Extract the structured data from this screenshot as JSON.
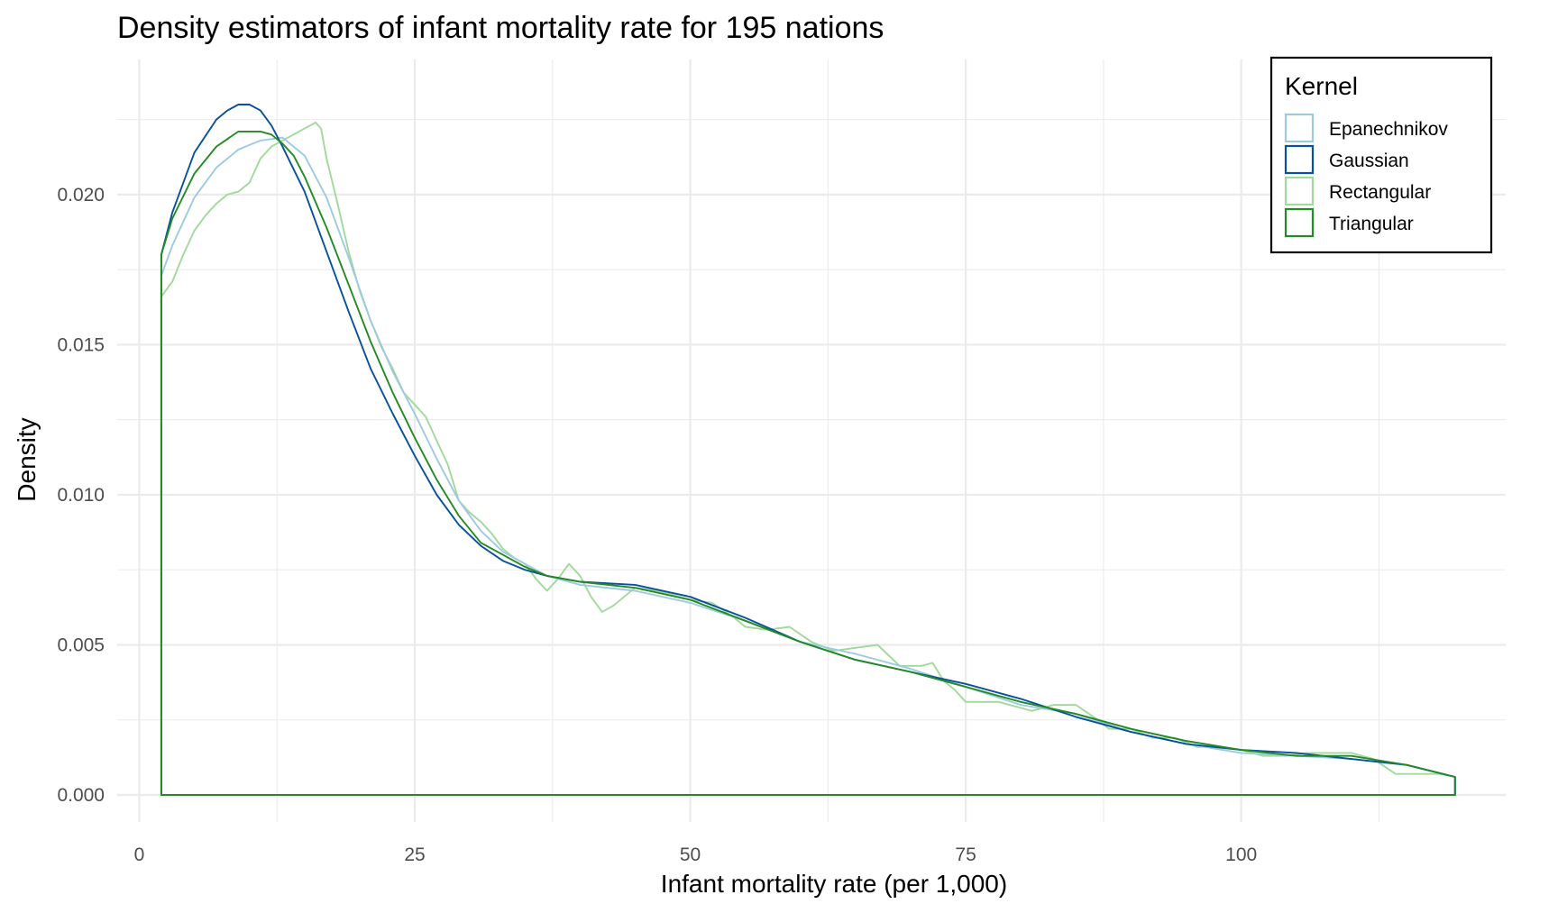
{
  "chart_data": {
    "type": "area",
    "title": "Density estimators of infant mortality rate for 195 nations",
    "xlabel": "Infant mortality rate (per 1,000)",
    "ylabel": "Density",
    "xlim": [
      -2,
      124
    ],
    "ylim": [
      -0.0009,
      0.0245
    ],
    "x_ticks": [
      0,
      25,
      50,
      75,
      100
    ],
    "x_tick_labels": [
      "0",
      "25",
      "50",
      "75",
      "100"
    ],
    "y_ticks": [
      0.0,
      0.005,
      0.01,
      0.015,
      0.02
    ],
    "y_tick_labels": [
      "0.000",
      "0.005",
      "0.010",
      "0.015",
      "0.020"
    ],
    "grid": true,
    "legend": {
      "title": "Kernel",
      "position": "top-right"
    },
    "series": [
      {
        "name": "Epanechnikov",
        "color": "#9ecae1",
        "x": [
          2,
          3,
          5,
          7,
          9,
          11,
          13,
          15,
          17,
          19,
          21,
          23,
          25,
          27,
          29,
          31,
          33,
          35,
          37,
          40,
          45,
          50,
          55,
          60,
          65,
          70,
          75,
          80,
          85,
          90,
          95,
          100,
          105,
          110,
          115,
          119.4
        ],
        "y": [
          0.0173,
          0.0183,
          0.0199,
          0.0209,
          0.0215,
          0.0218,
          0.0219,
          0.0213,
          0.0199,
          0.0179,
          0.0158,
          0.0141,
          0.0127,
          0.0112,
          0.0098,
          0.0088,
          0.0081,
          0.0077,
          0.0073,
          0.007,
          0.0068,
          0.0064,
          0.0058,
          0.0051,
          0.0047,
          0.0042,
          0.0036,
          0.003,
          0.0027,
          0.0021,
          0.0017,
          0.0014,
          0.0013,
          0.0012,
          0.001,
          0.0006
        ]
      },
      {
        "name": "Gaussian",
        "color": "#08519c",
        "x": [
          2,
          3,
          5,
          7,
          8,
          9,
          10,
          11,
          12,
          13,
          15,
          17,
          19,
          21,
          23,
          25,
          27,
          29,
          31,
          33,
          35,
          37,
          40,
          45,
          50,
          55,
          60,
          65,
          70,
          75,
          80,
          85,
          90,
          95,
          100,
          105,
          110,
          115,
          119.4
        ],
        "y": [
          0.018,
          0.0194,
          0.0214,
          0.0225,
          0.0228,
          0.023,
          0.023,
          0.0228,
          0.0223,
          0.0216,
          0.0201,
          0.0181,
          0.0161,
          0.0142,
          0.0127,
          0.0113,
          0.01,
          0.009,
          0.0083,
          0.0078,
          0.0075,
          0.0073,
          0.0071,
          0.007,
          0.0066,
          0.0059,
          0.0051,
          0.0045,
          0.0041,
          0.0037,
          0.0032,
          0.0026,
          0.0021,
          0.0017,
          0.0015,
          0.0014,
          0.0012,
          0.001,
          0.0006
        ]
      },
      {
        "name": "Rectangular",
        "color": "#a1d99b",
        "x": [
          2,
          3,
          4,
          5,
          6,
          7,
          8,
          9,
          10,
          11,
          12,
          13,
          14,
          15,
          16,
          16.5,
          17,
          18,
          19,
          20,
          21,
          22,
          23,
          24,
          25,
          26,
          27,
          28,
          29,
          30,
          31,
          32,
          33,
          34,
          35,
          36,
          37,
          38,
          39,
          40,
          41,
          42,
          43,
          44,
          45,
          47,
          50,
          52,
          54,
          55,
          57,
          59,
          61,
          63,
          65,
          67,
          69,
          71,
          72,
          73,
          74,
          75,
          78,
          81,
          83,
          85,
          87,
          88,
          90,
          92,
          94,
          96,
          98,
          100,
          102,
          104,
          106,
          108,
          110,
          112,
          114,
          116,
          118,
          119.4
        ],
        "y": [
          0.0166,
          0.0171,
          0.018,
          0.0188,
          0.0193,
          0.0197,
          0.02,
          0.0201,
          0.0204,
          0.0212,
          0.0216,
          0.0218,
          0.022,
          0.0222,
          0.0224,
          0.0222,
          0.0212,
          0.0197,
          0.0181,
          0.0168,
          0.0158,
          0.0149,
          0.0142,
          0.0134,
          0.013,
          0.0126,
          0.0118,
          0.011,
          0.0098,
          0.0094,
          0.0091,
          0.0087,
          0.0082,
          0.0079,
          0.0077,
          0.0072,
          0.0068,
          0.0072,
          0.0077,
          0.0073,
          0.0066,
          0.0061,
          0.0063,
          0.0066,
          0.0069,
          0.0068,
          0.0065,
          0.0064,
          0.0059,
          0.0056,
          0.0055,
          0.0056,
          0.0051,
          0.0048,
          0.0049,
          0.005,
          0.0043,
          0.0043,
          0.0044,
          0.0038,
          0.0035,
          0.0031,
          0.0031,
          0.0028,
          0.003,
          0.003,
          0.0025,
          0.0022,
          0.0022,
          0.0019,
          0.0019,
          0.0016,
          0.0016,
          0.0015,
          0.0013,
          0.0013,
          0.0014,
          0.0014,
          0.0014,
          0.0012,
          0.0007,
          0.0007,
          0.0007,
          0.0006
        ]
      },
      {
        "name": "Triangular",
        "color": "#238b23",
        "x": [
          2,
          3,
          5,
          7,
          9,
          10,
          11,
          12,
          13,
          14,
          15,
          17,
          19,
          21,
          23,
          25,
          27,
          29,
          31,
          33,
          35,
          37,
          40,
          45,
          50,
          55,
          60,
          65,
          70,
          75,
          80,
          85,
          90,
          95,
          100,
          105,
          110,
          115,
          119.4
        ],
        "y": [
          0.018,
          0.0192,
          0.0207,
          0.0216,
          0.0221,
          0.0221,
          0.0221,
          0.022,
          0.0217,
          0.0213,
          0.0206,
          0.0189,
          0.017,
          0.0151,
          0.0134,
          0.0119,
          0.0105,
          0.0093,
          0.0084,
          0.008,
          0.0076,
          0.0073,
          0.0071,
          0.0069,
          0.0065,
          0.0058,
          0.0051,
          0.0045,
          0.0041,
          0.0036,
          0.0031,
          0.0027,
          0.0022,
          0.0018,
          0.0015,
          0.0013,
          0.0013,
          0.001,
          0.0006
        ]
      }
    ]
  }
}
